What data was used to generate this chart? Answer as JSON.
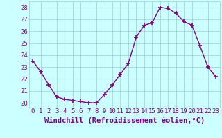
{
  "x": [
    0,
    1,
    2,
    3,
    4,
    5,
    6,
    7,
    8,
    9,
    10,
    11,
    12,
    13,
    14,
    15,
    16,
    17,
    18,
    19,
    20,
    21,
    22,
    23
  ],
  "y": [
    23.5,
    22.6,
    21.5,
    20.5,
    20.3,
    20.2,
    20.1,
    20.0,
    20.0,
    20.7,
    21.5,
    22.4,
    23.3,
    25.5,
    26.5,
    26.7,
    28.0,
    27.9,
    27.5,
    26.8,
    26.5,
    24.8,
    23.0,
    22.2
  ],
  "line_color": "#800080",
  "marker": "+",
  "markersize": 5,
  "markeredgewidth": 1.2,
  "linewidth": 1,
  "bg_color": "#ccffff",
  "grid_color": "#99cccc",
  "xlabel": "Windchill (Refroidissement éolien,°C)",
  "xlabel_color": "#800080",
  "xlabel_fontsize": 7.5,
  "ylabel_ticks": [
    20,
    21,
    22,
    23,
    24,
    25,
    26,
    27,
    28
  ],
  "xtick_labels": [
    "0",
    "1",
    "2",
    "3",
    "4",
    "5",
    "6",
    "7",
    "8",
    "9",
    "10",
    "11",
    "12",
    "13",
    "14",
    "15",
    "16",
    "17",
    "18",
    "19",
    "20",
    "21",
    "22",
    "23"
  ],
  "xlim": [
    -0.5,
    23.5
  ],
  "ylim": [
    19.6,
    28.5
  ],
  "tick_color": "#800080",
  "tick_fontsize": 6.5,
  "xlabel_fontweight": "bold"
}
